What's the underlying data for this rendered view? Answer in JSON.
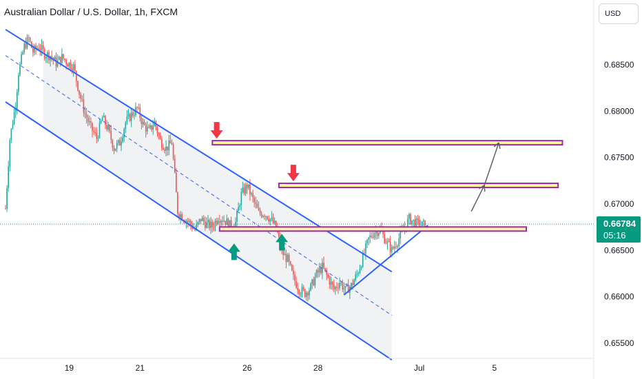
{
  "header": {
    "title": "Australian Dollar / U.S. Dollar, 1h, FXCM",
    "currency_button": "USD"
  },
  "price_tag": {
    "price": "0.66784",
    "countdown": "05:16"
  },
  "colors": {
    "up": "#26a69a",
    "down": "#ef5350",
    "channel": "#2962ff",
    "zone_border": "#9c27b0",
    "zone_fill": "#fff59d",
    "arrow_down": "#f23645",
    "arrow_up": "#089981",
    "projection": "#5d606b",
    "price_line": "#089981"
  },
  "chart_data": {
    "type": "candlestick",
    "title": "Australian Dollar / U.S. Dollar, 1h, FXCM",
    "x_ticks": [
      "19",
      "21",
      "26",
      "28",
      "Jul",
      "5"
    ],
    "y_ticks": [
      0.655,
      0.66,
      0.665,
      0.67,
      0.675,
      0.68,
      0.685
    ],
    "y_tick_labels": [
      "0.65500",
      "0.66000",
      "0.66500",
      "0.67000",
      "0.67500",
      "0.68000",
      "0.68500"
    ],
    "ylim": [
      0.6532,
      0.6893
    ],
    "current_price": 0.66784,
    "close_path_approx": [
      [
        0,
        0.6695
      ],
      [
        3,
        0.677
      ],
      [
        7,
        0.6808
      ],
      [
        9,
        0.6842
      ],
      [
        13,
        0.687
      ],
      [
        16,
        0.6878
      ],
      [
        19,
        0.6864
      ],
      [
        23,
        0.687
      ],
      [
        27,
        0.6862
      ],
      [
        31,
        0.686
      ],
      [
        35,
        0.6852
      ],
      [
        39,
        0.6858
      ],
      [
        43,
        0.6852
      ],
      [
        47,
        0.6848
      ],
      [
        51,
        0.682
      ],
      [
        55,
        0.6797
      ],
      [
        59,
        0.6782
      ],
      [
        63,
        0.6771
      ],
      [
        67,
        0.6793
      ],
      [
        71,
        0.678
      ],
      [
        75,
        0.676
      ],
      [
        79,
        0.6766
      ],
      [
        83,
        0.6788
      ],
      [
        87,
        0.6796
      ],
      [
        91,
        0.6803
      ],
      [
        95,
        0.6786
      ],
      [
        99,
        0.6778
      ],
      [
        103,
        0.6788
      ],
      [
        107,
        0.6768
      ],
      [
        111,
        0.676
      ],
      [
        115,
        0.6766
      ],
      [
        119,
        0.6692
      ],
      [
        123,
        0.6685
      ],
      [
        127,
        0.668
      ],
      [
        131,
        0.6672
      ],
      [
        135,
        0.6684
      ],
      [
        139,
        0.6678
      ],
      [
        143,
        0.6676
      ],
      [
        147,
        0.6686
      ],
      [
        151,
        0.6683
      ],
      [
        155,
        0.6677
      ],
      [
        159,
        0.668
      ],
      [
        163,
        0.671
      ],
      [
        167,
        0.672
      ],
      [
        171,
        0.6705
      ],
      [
        175,
        0.669
      ],
      [
        179,
        0.669
      ],
      [
        183,
        0.6684
      ],
      [
        187,
        0.6675
      ],
      [
        191,
        0.6648
      ],
      [
        195,
        0.664
      ],
      [
        199,
        0.662
      ],
      [
        203,
        0.6608
      ],
      [
        207,
        0.6604
      ],
      [
        211,
        0.661
      ],
      [
        215,
        0.6624
      ],
      [
        219,
        0.6632
      ],
      [
        223,
        0.662
      ],
      [
        227,
        0.6608
      ],
      [
        231,
        0.6616
      ],
      [
        235,
        0.6607
      ],
      [
        239,
        0.6612
      ],
      [
        243,
        0.6624
      ],
      [
        247,
        0.6642
      ],
      [
        251,
        0.6662
      ],
      [
        255,
        0.667
      ],
      [
        259,
        0.6672
      ],
      [
        263,
        0.666
      ],
      [
        267,
        0.665
      ],
      [
        271,
        0.666
      ],
      [
        275,
        0.6672
      ],
      [
        279,
        0.6684
      ],
      [
        283,
        0.668
      ],
      [
        287,
        0.6677
      ],
      [
        290,
        0.6678
      ]
    ],
    "annotations": {
      "channel_upper": [
        [
          0,
          0.6888
        ],
        [
          267,
          0.6627
        ]
      ],
      "channel_lower": [
        [
          0,
          0.681
        ],
        [
          267,
          0.6532
        ]
      ],
      "channel_midline": [
        [
          0,
          0.686
        ],
        [
          267,
          0.658
        ]
      ],
      "support_trendline": [
        [
          234,
          0.6602
        ],
        [
          292,
          0.6677
        ]
      ],
      "resistance_zones": [
        0.6766,
        0.672,
        0.6673
      ],
      "down_arrows_at": [
        0.6766,
        0.672
      ],
      "up_arrows_at": [
        0.6673,
        0.6673
      ],
      "projection_targets": [
        0.672,
        0.6766
      ]
    }
  }
}
